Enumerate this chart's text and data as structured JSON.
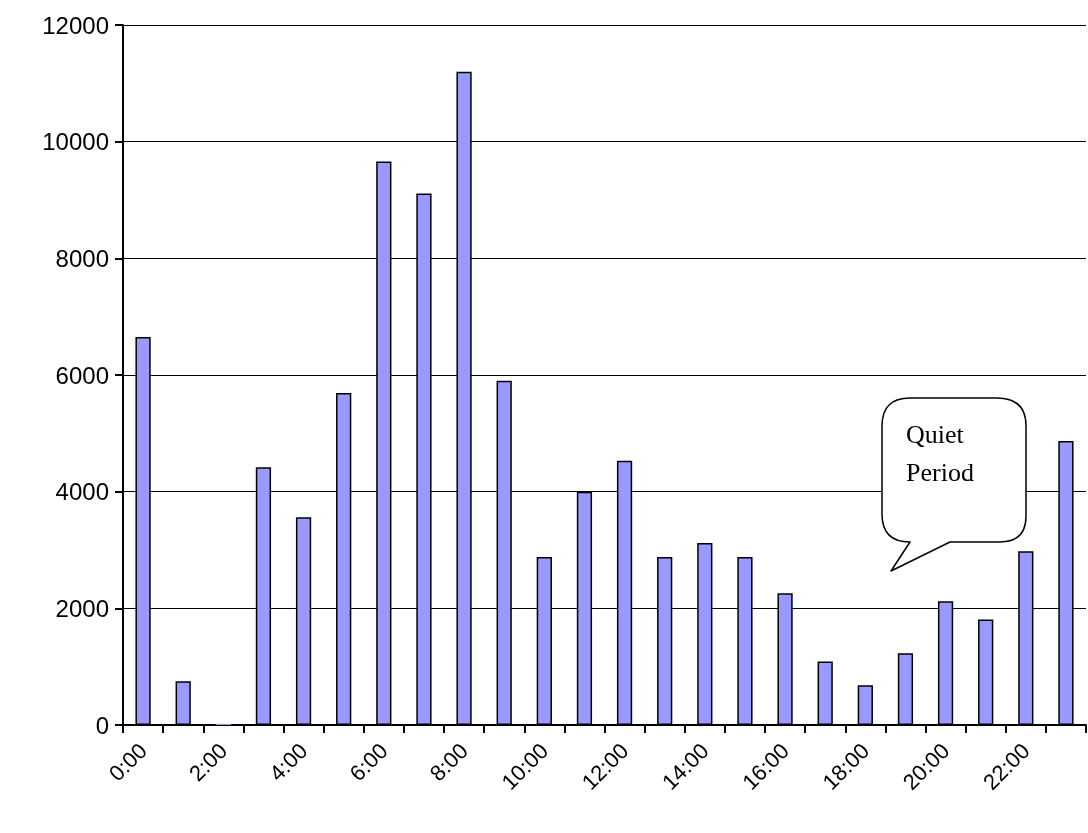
{
  "chart_data": {
    "type": "bar",
    "categories": [
      "0:00",
      null,
      "2:00",
      null,
      "4:00",
      null,
      "6:00",
      null,
      "8:00",
      null,
      "10:00",
      null,
      "12:00",
      null,
      "14:00",
      null,
      "16:00",
      null,
      "18:00",
      null,
      "20:00",
      null,
      "22:00",
      null
    ],
    "values": [
      6650,
      750,
      20,
      4420,
      3560,
      5690,
      9660,
      9110,
      11200,
      5900,
      2880,
      4000,
      4530,
      2880,
      3120,
      2880,
      2260,
      1090,
      680,
      1230,
      2120,
      1810,
      2980,
      4870
    ],
    "color": "#9999ff",
    "ylim": [
      0,
      12000
    ],
    "yticks": [
      0,
      2000,
      4000,
      6000,
      8000,
      10000,
      12000
    ],
    "grid": "y",
    "annotations": [
      "Quiet Period"
    ]
  }
}
